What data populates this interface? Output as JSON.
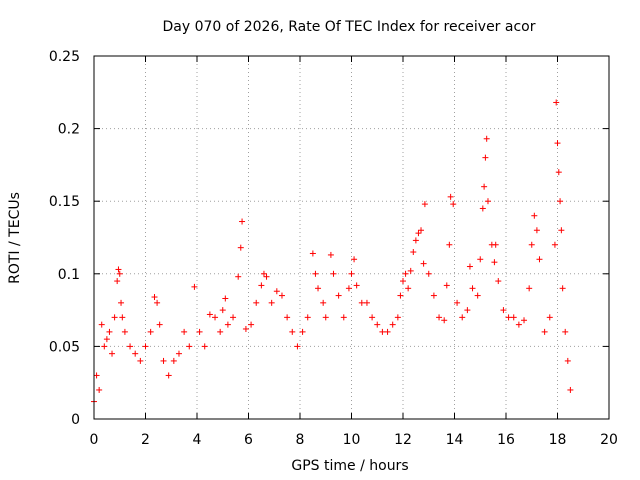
{
  "chart_data": {
    "type": "scatter",
    "title": "Day 070 of 2026, Rate Of TEC Index for receiver acor",
    "xlabel": "GPS time / hours",
    "ylabel": "ROTI / TECUs",
    "xlim": [
      0,
      20
    ],
    "ylim": [
      0,
      0.25
    ],
    "xticks": [
      0,
      2,
      4,
      6,
      8,
      10,
      12,
      14,
      16,
      18,
      20
    ],
    "xtick_labels": [
      "0",
      "2",
      "4",
      "6",
      "8",
      "10",
      "12",
      "14",
      "16",
      "18",
      "20"
    ],
    "yticks": [
      0,
      0.05,
      0.1,
      0.15,
      0.2,
      0.25
    ],
    "ytick_labels": [
      "0",
      "0.05",
      "0.1",
      "0.15",
      "0.2",
      "0.25"
    ],
    "grid": true,
    "marker": "+",
    "color": "#ff0000",
    "series": [
      {
        "points": [
          [
            0.0,
            0.012
          ],
          [
            0.1,
            0.03
          ],
          [
            0.2,
            0.02
          ],
          [
            0.3,
            0.065
          ],
          [
            0.4,
            0.05
          ],
          [
            0.5,
            0.055
          ],
          [
            0.6,
            0.06
          ],
          [
            0.7,
            0.045
          ],
          [
            0.8,
            0.07
          ],
          [
            0.9,
            0.095
          ],
          [
            0.95,
            0.103
          ],
          [
            1.0,
            0.1
          ],
          [
            1.05,
            0.08
          ],
          [
            1.1,
            0.07
          ],
          [
            1.2,
            0.06
          ],
          [
            1.4,
            0.05
          ],
          [
            1.6,
            0.045
          ],
          [
            1.8,
            0.04
          ],
          [
            2.0,
            0.05
          ],
          [
            2.2,
            0.06
          ],
          [
            2.35,
            0.084
          ],
          [
            2.45,
            0.08
          ],
          [
            2.55,
            0.065
          ],
          [
            2.7,
            0.04
          ],
          [
            2.9,
            0.03
          ],
          [
            3.1,
            0.04
          ],
          [
            3.3,
            0.045
          ],
          [
            3.5,
            0.06
          ],
          [
            3.7,
            0.05
          ],
          [
            3.9,
            0.091
          ],
          [
            4.1,
            0.06
          ],
          [
            4.3,
            0.05
          ],
          [
            4.5,
            0.072
          ],
          [
            4.7,
            0.07
          ],
          [
            4.9,
            0.06
          ],
          [
            5.0,
            0.075
          ],
          [
            5.1,
            0.083
          ],
          [
            5.2,
            0.065
          ],
          [
            5.4,
            0.07
          ],
          [
            5.6,
            0.098
          ],
          [
            5.7,
            0.118
          ],
          [
            5.75,
            0.136
          ],
          [
            5.9,
            0.062
          ],
          [
            6.1,
            0.065
          ],
          [
            6.3,
            0.08
          ],
          [
            6.5,
            0.092
          ],
          [
            6.6,
            0.1
          ],
          [
            6.7,
            0.098
          ],
          [
            6.9,
            0.08
          ],
          [
            7.1,
            0.088
          ],
          [
            7.3,
            0.085
          ],
          [
            7.5,
            0.07
          ],
          [
            7.7,
            0.06
          ],
          [
            7.9,
            0.05
          ],
          [
            8.1,
            0.06
          ],
          [
            8.3,
            0.07
          ],
          [
            8.5,
            0.114
          ],
          [
            8.6,
            0.1
          ],
          [
            8.7,
            0.09
          ],
          [
            8.9,
            0.08
          ],
          [
            9.0,
            0.07
          ],
          [
            9.2,
            0.113
          ],
          [
            9.3,
            0.1
          ],
          [
            9.5,
            0.085
          ],
          [
            9.7,
            0.07
          ],
          [
            9.9,
            0.09
          ],
          [
            10.0,
            0.1
          ],
          [
            10.1,
            0.11
          ],
          [
            10.2,
            0.092
          ],
          [
            10.4,
            0.08
          ],
          [
            10.6,
            0.08
          ],
          [
            10.8,
            0.07
          ],
          [
            11.0,
            0.065
          ],
          [
            11.2,
            0.06
          ],
          [
            11.4,
            0.06
          ],
          [
            11.6,
            0.065
          ],
          [
            11.8,
            0.07
          ],
          [
            11.9,
            0.085
          ],
          [
            12.0,
            0.095
          ],
          [
            12.1,
            0.1
          ],
          [
            12.2,
            0.09
          ],
          [
            12.3,
            0.102
          ],
          [
            12.4,
            0.115
          ],
          [
            12.5,
            0.123
          ],
          [
            12.6,
            0.128
          ],
          [
            12.7,
            0.13
          ],
          [
            12.8,
            0.107
          ],
          [
            12.85,
            0.148
          ],
          [
            13.0,
            0.1
          ],
          [
            13.2,
            0.085
          ],
          [
            13.4,
            0.07
          ],
          [
            13.6,
            0.068
          ],
          [
            13.7,
            0.092
          ],
          [
            13.8,
            0.12
          ],
          [
            13.85,
            0.153
          ],
          [
            13.95,
            0.148
          ],
          [
            14.1,
            0.08
          ],
          [
            14.3,
            0.07
          ],
          [
            14.5,
            0.075
          ],
          [
            14.6,
            0.105
          ],
          [
            14.7,
            0.09
          ],
          [
            14.9,
            0.085
          ],
          [
            15.0,
            0.11
          ],
          [
            15.1,
            0.145
          ],
          [
            15.15,
            0.16
          ],
          [
            15.2,
            0.18
          ],
          [
            15.25,
            0.193
          ],
          [
            15.3,
            0.15
          ],
          [
            15.45,
            0.12
          ],
          [
            15.55,
            0.108
          ],
          [
            15.6,
            0.12
          ],
          [
            15.7,
            0.095
          ],
          [
            15.9,
            0.075
          ],
          [
            16.1,
            0.07
          ],
          [
            16.3,
            0.07
          ],
          [
            16.5,
            0.065
          ],
          [
            16.7,
            0.068
          ],
          [
            16.9,
            0.09
          ],
          [
            17.0,
            0.12
          ],
          [
            17.1,
            0.14
          ],
          [
            17.2,
            0.13
          ],
          [
            17.3,
            0.11
          ],
          [
            17.5,
            0.06
          ],
          [
            17.7,
            0.07
          ],
          [
            17.9,
            0.12
          ],
          [
            17.95,
            0.218
          ],
          [
            18.0,
            0.19
          ],
          [
            18.05,
            0.17
          ],
          [
            18.1,
            0.15
          ],
          [
            18.15,
            0.13
          ],
          [
            18.2,
            0.09
          ],
          [
            18.3,
            0.06
          ],
          [
            18.4,
            0.04
          ],
          [
            18.5,
            0.02
          ]
        ]
      }
    ]
  }
}
